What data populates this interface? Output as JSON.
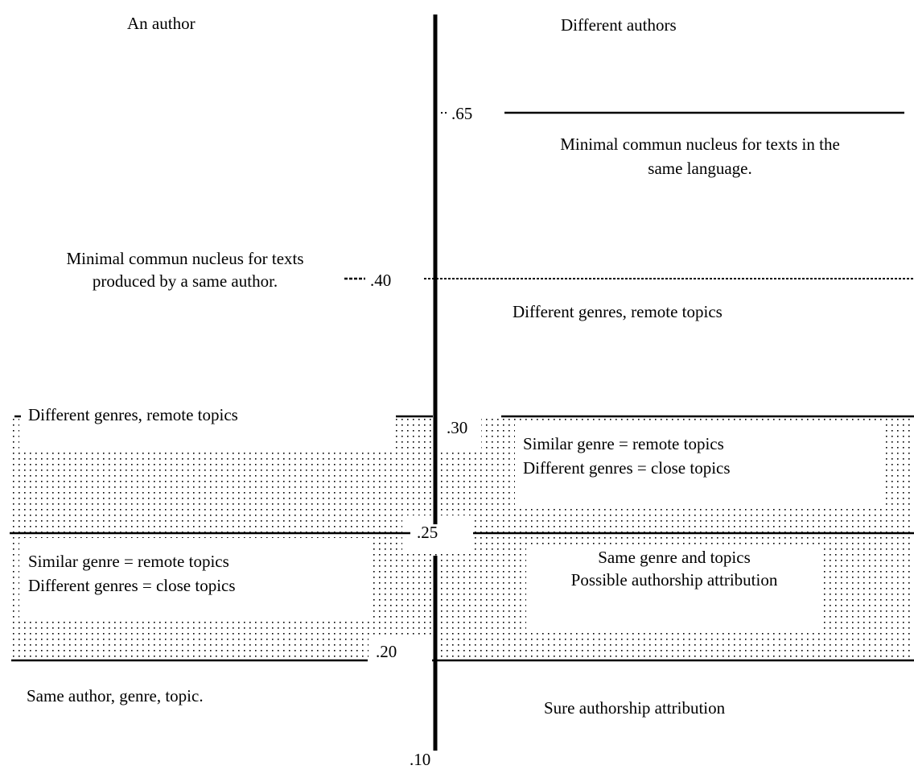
{
  "headers": {
    "left": "An author",
    "right": "Different authors"
  },
  "scale": {
    "v65": ".65",
    "v40": ".40",
    "v30": ".30",
    "v25": ".25",
    "v20": ".20",
    "v10": ".10"
  },
  "right_column": {
    "language_nucleus_line1": "Minimal commun nucleus for texts in the",
    "language_nucleus_line2": "same language.",
    "genres_remote": "Different genres, remote topics",
    "similar_remote": "Similar genre = remote topics",
    "different_close": "Different genres = close topics",
    "same_genre_topics": "Same genre and topics",
    "possible_attribution": "Possible authorship attribution",
    "sure_attribution": "Sure authorship attribution"
  },
  "left_column": {
    "author_nucleus_line1": "Minimal commun nucleus for texts",
    "author_nucleus_line2": "produced by a same author.",
    "genres_remote": "Different genres, remote topics",
    "similar_remote": "Similar genre = remote topics",
    "different_close": "Different genres = close topics",
    "same_author": "Same author, genre, topic."
  }
}
